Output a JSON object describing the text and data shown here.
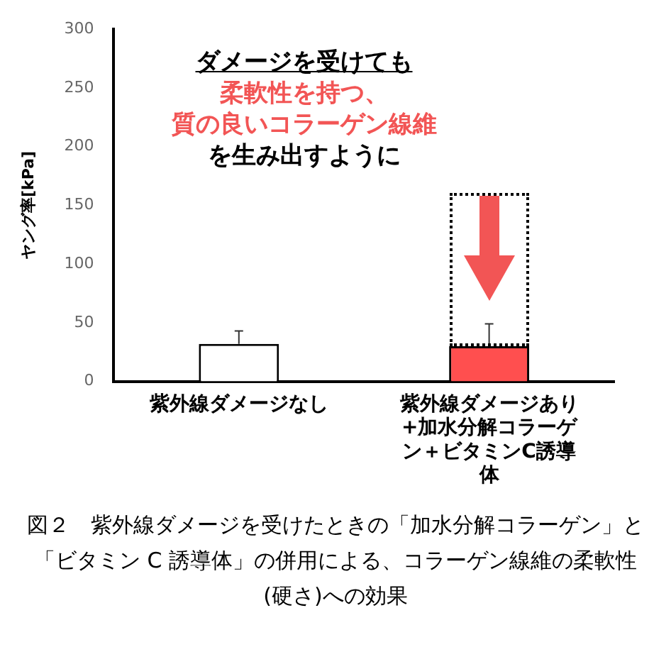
{
  "chart_data": {
    "type": "bar",
    "ylabel": "ヤング率[kPa]",
    "categories": [
      "紫外線ダメージなし",
      "紫外線ダメージあり+加水分解コラーゲン＋ビタミンC誘導体"
    ],
    "values": [
      32,
      30
    ],
    "colors": [
      "#ffffff",
      "#ff4f4f"
    ],
    "errors": [
      [
        32,
        43
      ],
      [
        30,
        49
      ]
    ],
    "ylim": [
      0,
      300
    ],
    "yticks": [
      0,
      50,
      100,
      150,
      200,
      250,
      300
    ],
    "grid": false,
    "legend": false,
    "annotations": [
      "ダメージを受けても",
      "柔軟性を持つ、",
      "質の良いコラーゲン線維",
      "を生み出すように",
      "図２　紫外線ダメージを受けたときの「加水分解コラーゲン」と「ビタミン C 誘導体」の併用による、コラーゲン線維の柔軟性(硬さ)への効果"
    ]
  }
}
